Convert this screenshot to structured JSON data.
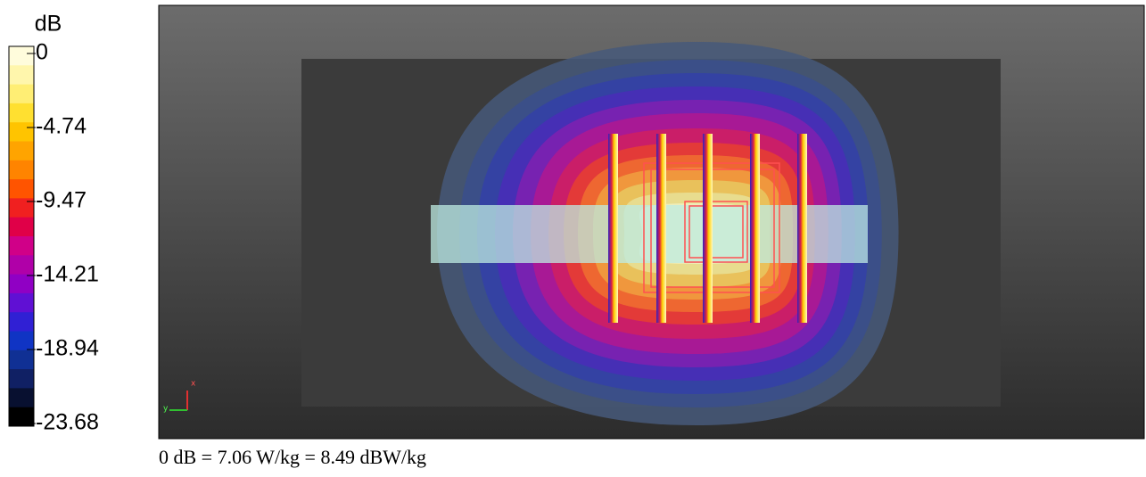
{
  "colorbar": {
    "unit": "dB",
    "ticks": [
      0,
      -4.74,
      -9.47,
      -14.21,
      -18.94,
      -23.68
    ]
  },
  "view": {
    "axis_x": "x",
    "axis_y": "y"
  },
  "caption": "0 dB = 7.06 W/kg = 8.49 dBW/kg"
}
